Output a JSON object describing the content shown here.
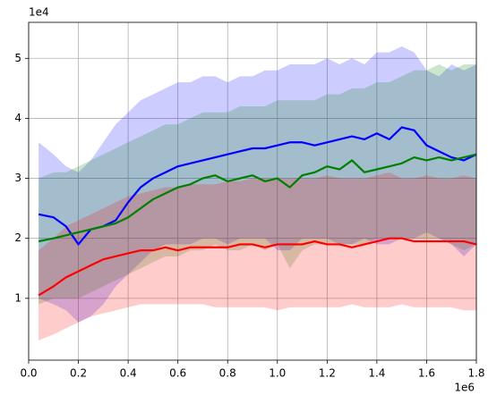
{
  "chart_data": {
    "type": "line",
    "x_offset_label": "1e6",
    "y_offset_label": "1e4",
    "xlim": [
      0,
      1.8
    ],
    "ylim": [
      -0.03,
      5.6
    ],
    "xticks": [
      {
        "value": 0,
        "label": "0.0"
      },
      0.2,
      0.4,
      0.6,
      0.8,
      {
        "value": 1,
        "label": "1.0"
      },
      1.2,
      1.4,
      1.6,
      1.8
    ],
    "yticks": [
      1,
      2,
      3,
      4,
      5
    ],
    "grid": true,
    "x": [
      0.04,
      0.1,
      0.15,
      0.2,
      0.25,
      0.3,
      0.35,
      0.4,
      0.45,
      0.5,
      0.55,
      0.6,
      0.65,
      0.7,
      0.75,
      0.8,
      0.85,
      0.9,
      0.95,
      1.0,
      1.05,
      1.1,
      1.15,
      1.2,
      1.25,
      1.3,
      1.35,
      1.4,
      1.45,
      1.5,
      1.55,
      1.6,
      1.65,
      1.7,
      1.75,
      1.8
    ],
    "series": [
      {
        "color": "#0000ff",
        "values": [
          2.4,
          2.35,
          2.2,
          1.9,
          2.15,
          2.2,
          2.3,
          2.6,
          2.85,
          3.0,
          3.1,
          3.2,
          3.25,
          3.3,
          3.35,
          3.4,
          3.45,
          3.5,
          3.5,
          3.55,
          3.6,
          3.6,
          3.55,
          3.6,
          3.65,
          3.7,
          3.65,
          3.75,
          3.65,
          3.85,
          3.8,
          3.55,
          3.45,
          3.35,
          3.3,
          3.4
        ],
        "upper": [
          3.6,
          3.4,
          3.2,
          3.1,
          3.3,
          3.6,
          3.9,
          4.1,
          4.3,
          4.4,
          4.5,
          4.6,
          4.6,
          4.7,
          4.7,
          4.6,
          4.7,
          4.7,
          4.8,
          4.8,
          4.9,
          4.9,
          4.9,
          5.0,
          4.9,
          5.0,
          4.9,
          5.1,
          5.1,
          5.2,
          5.1,
          4.8,
          4.7,
          4.9,
          4.8,
          4.9
        ],
        "lower": [
          1.0,
          0.9,
          0.8,
          0.6,
          0.7,
          0.9,
          1.2,
          1.4,
          1.6,
          1.8,
          1.9,
          1.9,
          1.9,
          2.0,
          2.0,
          1.9,
          2.0,
          2.0,
          2.0,
          1.8,
          1.8,
          2.0,
          2.0,
          2.0,
          1.9,
          1.9,
          2.0,
          1.9,
          1.9,
          2.0,
          2.0,
          2.1,
          2.0,
          1.9,
          1.7,
          1.9
        ]
      },
      {
        "color": "#008000",
        "values": [
          1.95,
          2.0,
          2.05,
          2.1,
          2.15,
          2.2,
          2.25,
          2.35,
          2.5,
          2.65,
          2.75,
          2.85,
          2.9,
          3.0,
          3.05,
          2.95,
          3.0,
          3.05,
          2.95,
          3.0,
          2.85,
          3.05,
          3.1,
          3.2,
          3.15,
          3.3,
          3.1,
          3.15,
          3.2,
          3.25,
          3.35,
          3.3,
          3.35,
          3.3,
          3.35,
          3.4
        ],
        "upper": [
          3.0,
          3.1,
          3.1,
          3.2,
          3.3,
          3.4,
          3.5,
          3.6,
          3.7,
          3.8,
          3.9,
          3.9,
          4.0,
          4.1,
          4.1,
          4.1,
          4.2,
          4.2,
          4.2,
          4.3,
          4.3,
          4.3,
          4.3,
          4.4,
          4.4,
          4.5,
          4.5,
          4.6,
          4.6,
          4.7,
          4.8,
          4.8,
          4.9,
          4.8,
          4.9,
          4.9
        ],
        "lower": [
          0.9,
          1.0,
          1.0,
          1.0,
          1.1,
          1.2,
          1.3,
          1.4,
          1.5,
          1.6,
          1.7,
          1.7,
          1.8,
          1.8,
          1.9,
          1.8,
          1.8,
          1.9,
          1.8,
          1.9,
          1.5,
          1.8,
          1.9,
          1.9,
          1.9,
          1.9,
          1.9,
          2.0,
          2.0,
          2.0,
          2.0,
          2.0,
          2.0,
          1.9,
          1.8,
          1.9
        ]
      },
      {
        "color": "#ff0000",
        "values": [
          1.05,
          1.2,
          1.35,
          1.45,
          1.55,
          1.65,
          1.7,
          1.75,
          1.8,
          1.8,
          1.85,
          1.8,
          1.85,
          1.85,
          1.85,
          1.85,
          1.9,
          1.9,
          1.85,
          1.9,
          1.9,
          1.9,
          1.95,
          1.9,
          1.9,
          1.85,
          1.9,
          1.95,
          2.0,
          2.0,
          1.95,
          1.95,
          1.95,
          1.95,
          1.95,
          1.9
        ],
        "upper": [
          1.8,
          2.0,
          2.2,
          2.3,
          2.4,
          2.5,
          2.6,
          2.7,
          2.75,
          2.8,
          2.85,
          2.85,
          2.9,
          2.9,
          2.9,
          2.95,
          2.95,
          3.0,
          3.0,
          3.0,
          3.0,
          3.0,
          3.0,
          3.05,
          3.0,
          3.0,
          3.0,
          3.05,
          3.1,
          3.0,
          3.0,
          3.05,
          3.0,
          3.0,
          3.05,
          3.0
        ],
        "lower": [
          0.3,
          0.4,
          0.5,
          0.6,
          0.7,
          0.75,
          0.8,
          0.85,
          0.9,
          0.9,
          0.9,
          0.9,
          0.9,
          0.9,
          0.85,
          0.85,
          0.85,
          0.85,
          0.85,
          0.8,
          0.85,
          0.85,
          0.85,
          0.85,
          0.85,
          0.9,
          0.85,
          0.85,
          0.85,
          0.9,
          0.85,
          0.85,
          0.85,
          0.85,
          0.8,
          0.8
        ]
      }
    ]
  }
}
